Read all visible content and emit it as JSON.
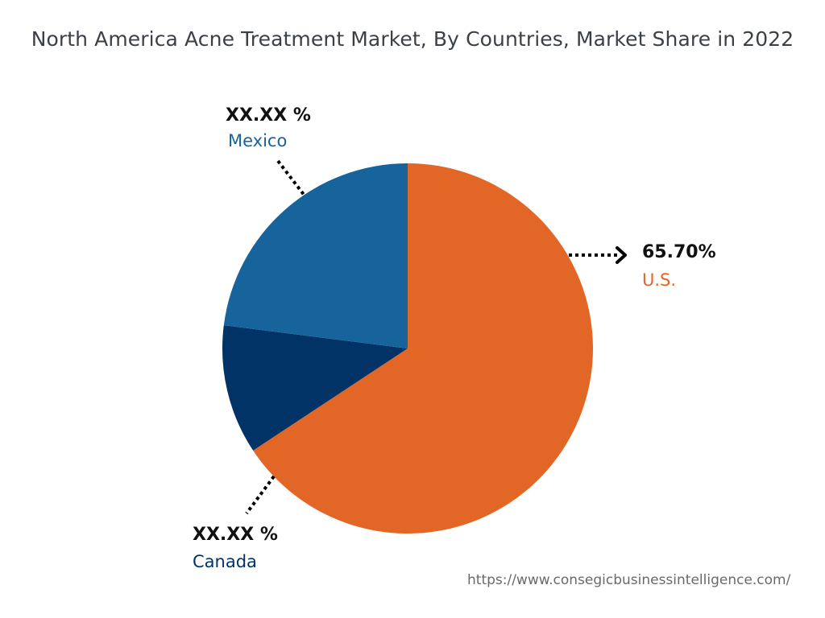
{
  "chart_data": {
    "type": "pie",
    "title": "North America Acne Treatment Market, By Countries, Market Share in 2022",
    "slices": [
      {
        "label": "U.S.",
        "value": 65.7,
        "value_label": "65.70%",
        "color": "#e26726"
      },
      {
        "label": "Canada",
        "value": 11.3,
        "value_label": "XX.XX %",
        "color": "#023366"
      },
      {
        "label": "Mexico",
        "value": 23.0,
        "value_label": "XX.XX %",
        "color": "#17649d"
      }
    ],
    "start": "top",
    "direction": "clockwise"
  },
  "source": "https://www.consegicbusinessintelligence.com/"
}
